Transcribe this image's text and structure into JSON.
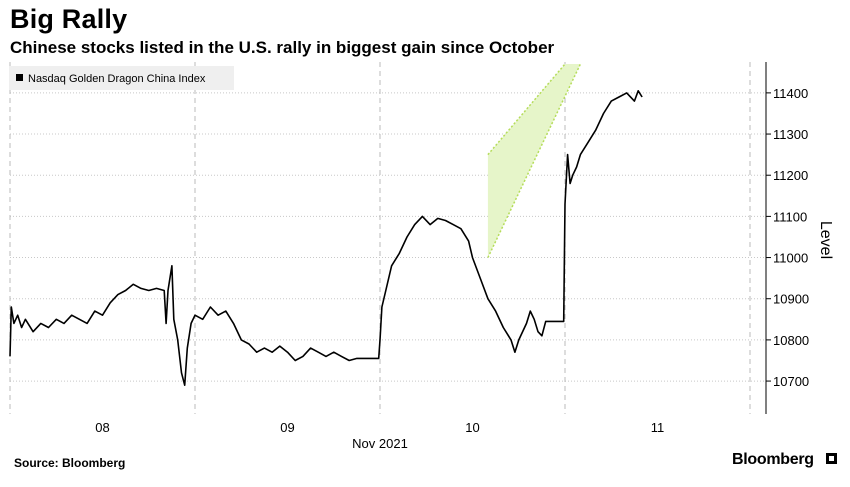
{
  "header": {
    "title": "Big Rally",
    "subtitle": "Chinese stocks listed in the U.S. rally in biggest gain since October"
  },
  "footer": {
    "source": "Source: Bloomberg",
    "brand": "Bloomberg"
  },
  "colors": {
    "line": "#000000",
    "channel_fill": "#e6f5c9",
    "channel_border": "#b5dc5a",
    "grid": "#c8c8c8"
  },
  "chart_data": {
    "type": "line",
    "title": "",
    "xlabel": "Nov 2021",
    "ylabel": "Level",
    "ylim": [
      10620,
      11475
    ],
    "yticks": [
      10700,
      10800,
      10900,
      11000,
      11100,
      11200,
      11300,
      11400
    ],
    "x_ticks": [
      "08",
      "09",
      "10",
      "11"
    ],
    "grid": true,
    "legend": {
      "position": "top-left",
      "entries": [
        "Nasdaq Golden Dragon China Index"
      ]
    },
    "annotation": {
      "type": "channel",
      "lower_start": {
        "x": "2021-11-10T14:00",
        "y": 11000
      },
      "lower_end": {
        "x": "2021-11-11T02:00",
        "y": 11470
      },
      "upper_start": {
        "x": "2021-11-10T14:00",
        "y": 11250
      },
      "upper_end": {
        "x": "2021-11-11T00:00",
        "y": 11470
      }
    },
    "series": [
      {
        "name": "Nasdaq Golden Dragon China Index",
        "points": [
          [
            "2021-11-07T24:00",
            10760
          ],
          [
            "2021-11-08T00:10",
            10880
          ],
          [
            "2021-11-08T00:30",
            10840
          ],
          [
            "2021-11-08T01:00",
            10860
          ],
          [
            "2021-11-08T01:30",
            10830
          ],
          [
            "2021-11-08T02:00",
            10850
          ],
          [
            "2021-11-08T03:00",
            10820
          ],
          [
            "2021-11-08T04:00",
            10840
          ],
          [
            "2021-11-08T05:00",
            10830
          ],
          [
            "2021-11-08T06:00",
            10850
          ],
          [
            "2021-11-08T07:00",
            10840
          ],
          [
            "2021-11-08T08:00",
            10860
          ],
          [
            "2021-11-08T09:00",
            10850
          ],
          [
            "2021-11-08T10:00",
            10840
          ],
          [
            "2021-11-08T11:00",
            10870
          ],
          [
            "2021-11-08T12:00",
            10860
          ],
          [
            "2021-11-08T13:00",
            10890
          ],
          [
            "2021-11-08T14:00",
            10910
          ],
          [
            "2021-11-08T15:00",
            10920
          ],
          [
            "2021-11-08T16:00",
            10935
          ],
          [
            "2021-11-08T17:00",
            10925
          ],
          [
            "2021-11-08T18:00",
            10920
          ],
          [
            "2021-11-08T19:00",
            10925
          ],
          [
            "2021-11-08T20:00",
            10920
          ],
          [
            "2021-11-08T20:15",
            10840
          ],
          [
            "2021-11-08T20:30",
            10920
          ],
          [
            "2021-11-08T21:00",
            10980
          ],
          [
            "2021-11-08T21:15",
            10850
          ],
          [
            "2021-11-08T21:45",
            10800
          ],
          [
            "2021-11-08T22:15",
            10720
          ],
          [
            "2021-11-08T22:40",
            10690
          ],
          [
            "2021-11-08T23:00",
            10780
          ],
          [
            "2021-11-08T23:30",
            10840
          ],
          [
            "2021-11-09T00:00",
            10860
          ],
          [
            "2021-11-09T01:00",
            10850
          ],
          [
            "2021-11-09T02:00",
            10880
          ],
          [
            "2021-11-09T03:00",
            10860
          ],
          [
            "2021-11-09T04:00",
            10870
          ],
          [
            "2021-11-09T05:00",
            10840
          ],
          [
            "2021-11-09T06:00",
            10800
          ],
          [
            "2021-11-09T07:00",
            10790
          ],
          [
            "2021-11-09T08:00",
            10770
          ],
          [
            "2021-11-09T09:00",
            10780
          ],
          [
            "2021-11-09T10:00",
            10770
          ],
          [
            "2021-11-09T11:00",
            10785
          ],
          [
            "2021-11-09T12:00",
            10770
          ],
          [
            "2021-11-09T13:00",
            10750
          ],
          [
            "2021-11-09T14:00",
            10760
          ],
          [
            "2021-11-09T15:00",
            10780
          ],
          [
            "2021-11-09T16:00",
            10770
          ],
          [
            "2021-11-09T17:00",
            10760
          ],
          [
            "2021-11-09T18:00",
            10770
          ],
          [
            "2021-11-09T19:00",
            10760
          ],
          [
            "2021-11-09T20:00",
            10750
          ],
          [
            "2021-11-09T21:00",
            10755
          ],
          [
            "2021-11-09T23:50",
            10755
          ],
          [
            "2021-11-10T00:00",
            10800
          ],
          [
            "2021-11-10T00:15",
            10880
          ],
          [
            "2021-11-10T00:45",
            10920
          ],
          [
            "2021-11-10T01:30",
            10980
          ],
          [
            "2021-11-10T02:30",
            11010
          ],
          [
            "2021-11-10T03:30",
            11050
          ],
          [
            "2021-11-10T04:30",
            11080
          ],
          [
            "2021-11-10T05:30",
            11100
          ],
          [
            "2021-11-10T06:30",
            11080
          ],
          [
            "2021-11-10T07:30",
            11095
          ],
          [
            "2021-11-10T08:30",
            11090
          ],
          [
            "2021-11-10T09:30",
            11080
          ],
          [
            "2021-11-10T10:30",
            11070
          ],
          [
            "2021-11-10T11:30",
            11040
          ],
          [
            "2021-11-10T12:00",
            11000
          ],
          [
            "2021-11-10T13:00",
            10950
          ],
          [
            "2021-11-10T14:00",
            10900
          ],
          [
            "2021-11-10T15:00",
            10870
          ],
          [
            "2021-11-10T16:00",
            10830
          ],
          [
            "2021-11-10T17:00",
            10800
          ],
          [
            "2021-11-10T17:30",
            10770
          ],
          [
            "2021-11-10T18:00",
            10800
          ],
          [
            "2021-11-10T19:00",
            10840
          ],
          [
            "2021-11-10T19:30",
            10870
          ],
          [
            "2021-11-10T20:00",
            10850
          ],
          [
            "2021-11-10T20:30",
            10820
          ],
          [
            "2021-11-10T21:00",
            10810
          ],
          [
            "2021-11-10T21:30",
            10845
          ],
          [
            "2021-11-10T23:50",
            10845
          ],
          [
            "2021-11-11T00:00",
            11130
          ],
          [
            "2021-11-11T00:20",
            11250
          ],
          [
            "2021-11-11T00:40",
            11180
          ],
          [
            "2021-11-11T01:00",
            11200
          ],
          [
            "2021-11-11T01:30",
            11220
          ],
          [
            "2021-11-11T02:00",
            11250
          ],
          [
            "2021-11-11T03:00",
            11280
          ],
          [
            "2021-11-11T04:00",
            11310
          ],
          [
            "2021-11-11T05:00",
            11350
          ],
          [
            "2021-11-11T06:00",
            11380
          ],
          [
            "2021-11-11T07:00",
            11390
          ],
          [
            "2021-11-11T08:00",
            11400
          ],
          [
            "2021-11-11T09:00",
            11380
          ],
          [
            "2021-11-11T09:30",
            11405
          ],
          [
            "2021-11-11T10:00",
            11390
          ]
        ]
      }
    ]
  }
}
